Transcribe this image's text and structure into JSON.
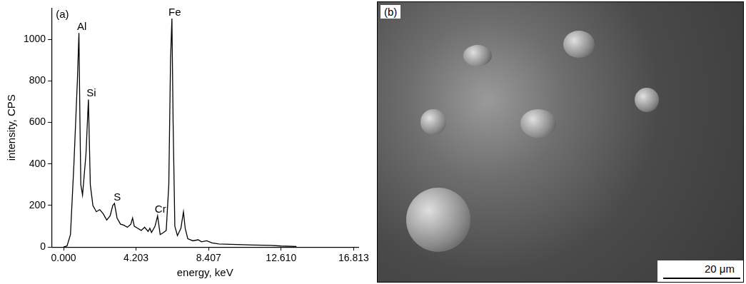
{
  "chart_data": {
    "type": "line",
    "title": "(a)",
    "x_label": "energy, keV",
    "y_label": "intensity, CPS",
    "x": [
      0.0,
      0.2,
      0.4,
      0.6,
      0.8,
      0.89,
      0.95,
      1.0,
      1.1,
      1.3,
      1.44,
      1.55,
      1.7,
      1.9,
      2.1,
      2.3,
      2.5,
      2.7,
      2.85,
      2.95,
      3.1,
      3.3,
      3.5,
      3.7,
      3.9,
      4.0,
      4.1,
      4.3,
      4.5,
      4.7,
      4.9,
      5.0,
      5.1,
      5.2,
      5.3,
      5.45,
      5.6,
      5.8,
      5.95,
      6.1,
      6.2,
      6.28,
      6.35,
      6.45,
      6.6,
      6.8,
      6.95,
      7.05,
      7.2,
      7.5,
      7.8,
      8.0,
      8.3,
      8.6,
      9.0,
      10.0,
      11.0,
      12.0,
      12.6,
      13.5
    ],
    "values": [
      0,
      5,
      60,
      400,
      800,
      1030,
      600,
      300,
      250,
      450,
      710,
      300,
      200,
      170,
      180,
      160,
      130,
      150,
      200,
      210,
      140,
      110,
      105,
      95,
      110,
      140,
      100,
      90,
      80,
      95,
      75,
      90,
      70,
      85,
      100,
      150,
      60,
      70,
      80,
      300,
      900,
      1100,
      600,
      100,
      55,
      90,
      170,
      90,
      40,
      30,
      35,
      25,
      30,
      20,
      15,
      12,
      10,
      8,
      5,
      3
    ],
    "color": "#000000",
    "xlim": [
      -0.7,
      17.1
    ],
    "xticks": [
      {
        "value": 0,
        "label": "0.000"
      },
      4.203,
      8.407,
      {
        "value": 12.61,
        "label": "12.610"
      },
      16.813
    ],
    "ylim": [
      0,
      1150
    ],
    "yticks": [
      0,
      200,
      400,
      600,
      800,
      1000
    ],
    "grid": false,
    "annotations": [
      {
        "text": "Al",
        "x": 0.89,
        "y": 1030
      },
      {
        "text": "Si",
        "x": 1.44,
        "y": 710
      },
      {
        "text": "S",
        "x": 2.95,
        "y": 210
      },
      {
        "text": "Cr",
        "x": 5.45,
        "y": 150
      },
      {
        "text": "Fe",
        "x": 6.28,
        "y": 1100
      }
    ]
  },
  "image_panel": {
    "label": "(b)",
    "scale_bar": "20 μm"
  }
}
